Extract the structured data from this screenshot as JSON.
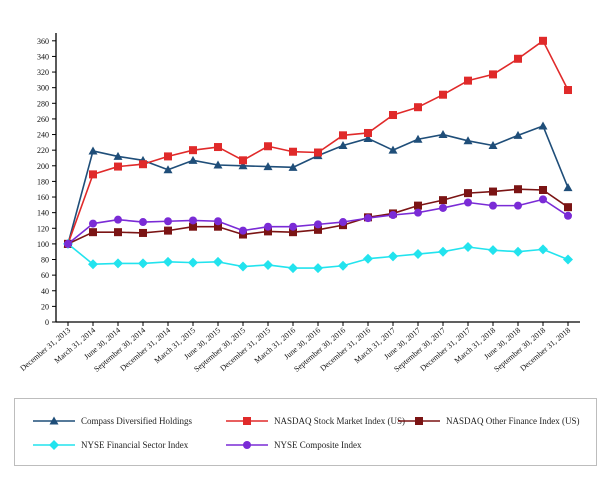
{
  "chart_data": {
    "type": "line",
    "title": "",
    "xlabel": "",
    "ylabel": "",
    "ylim": [
      0,
      370
    ],
    "yticks": [
      0,
      20,
      40,
      60,
      80,
      100,
      120,
      140,
      160,
      180,
      200,
      220,
      240,
      260,
      280,
      300,
      320,
      340,
      360
    ],
    "grid": false,
    "legend_position": "bottom",
    "categories": [
      "December 31, 2013",
      "March 31, 2014",
      "June 30, 2014",
      "September 30, 2014",
      "December 31, 2014",
      "March 31, 2015",
      "June 30, 2015",
      "September 30, 2015",
      "December 31, 2015",
      "March 31, 2016",
      "June 30, 2016",
      "September 30, 2016",
      "December 31, 2016",
      "March 31, 2017",
      "June 30, 2017",
      "September 30, 2017",
      "December 31, 2017",
      "March 31, 2018",
      "June 30, 2018",
      "September 30, 2018",
      "December 31, 2018"
    ],
    "series": [
      {
        "name": "Compass Diversified Holdings",
        "color": "#1f4e79",
        "marker": "triangle",
        "values": [
          100,
          219,
          212,
          207,
          195,
          207,
          201,
          200,
          199,
          198,
          213,
          226,
          235,
          220,
          234,
          240,
          232,
          226,
          239,
          251,
          172
        ]
      },
      {
        "name": "NASDAQ Stock Market Index (US)",
        "color": "#e02a2a",
        "marker": "square",
        "values": [
          100,
          189,
          199,
          202,
          212,
          220,
          224,
          207,
          225,
          218,
          217,
          239,
          242,
          265,
          275,
          291,
          309,
          317,
          337,
          360,
          297
        ]
      },
      {
        "name": "NASDAQ Other Finance Index (US)",
        "color": "#7b1414",
        "marker": "square",
        "values": [
          100,
          115,
          115,
          114,
          117,
          122,
          122,
          112,
          116,
          115,
          118,
          124,
          134,
          139,
          149,
          156,
          165,
          167,
          170,
          169,
          147
        ]
      },
      {
        "name": "NYSE Financial Sector Index",
        "color": "#22e3ee",
        "marker": "diamond",
        "values": [
          100,
          74,
          75,
          75,
          77,
          76,
          77,
          71,
          73,
          69,
          69,
          72,
          81,
          84,
          87,
          90,
          96,
          92,
          90,
          93,
          80
        ]
      },
      {
        "name": "NYSE Composite Index",
        "color": "#7a2bd6",
        "marker": "circle",
        "values": [
          100,
          126,
          131,
          128,
          129,
          130,
          129,
          117,
          122,
          122,
          125,
          128,
          133,
          137,
          140,
          146,
          153,
          149,
          149,
          157,
          136
        ]
      }
    ]
  }
}
